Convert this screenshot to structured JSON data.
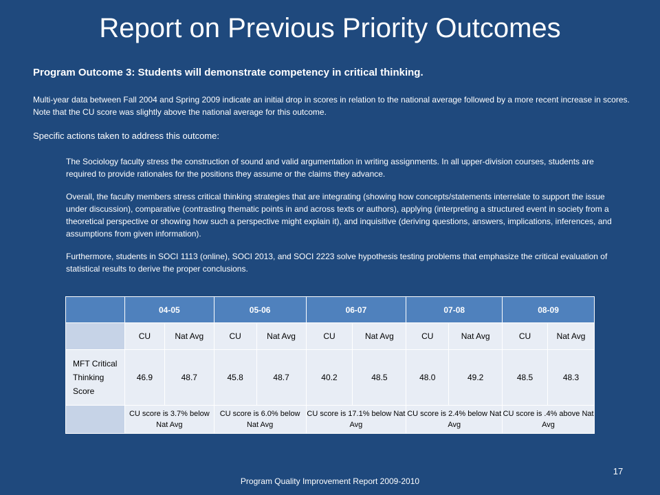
{
  "slide": {
    "title": "Report on Previous Priority Outcomes",
    "outcome": "Program Outcome 3: Students will demonstrate competency in critical thinking.",
    "summary": "Multi-year data between Fall 2004 and Spring 2009 indicate an initial drop in scores in relation to the national average followed by a more recent increase in scores. Note that the CU score was slightly above the national average for this outcome.",
    "actions_heading": "Specific actions taken to address this outcome:",
    "actions": [
      "The Sociology faculty stress the construction of sound and valid argumentation in writing assignments. In all upper-division courses, students are required to provide rationales for the positions they assume or the claims they advance.",
      "Overall, the faculty members stress critical thinking strategies that are integrating (showing how concepts/statements interrelate to support the issue under discussion), comparative (contrasting thematic points in and across texts or authors), applying (interpreting a structured event in society from a theoretical perspective or showing how such a perspective might explain it), and inquisitive (deriving questions, answers, implications, inferences, and assumptions from given information).",
      "Furthermore, students in SOCI 1113 (online), SOCI 2013, and SOCI 2223 solve hypothesis testing problems that emphasize the critical evaluation of statistical results to derive the proper conclusions."
    ],
    "footer": "Program Quality Improvement Report 2009-2010",
    "page_number": "17"
  },
  "table": {
    "years": [
      "04-05",
      "05-06",
      "06-07",
      "07-08",
      "08-09"
    ],
    "sub_headers": [
      "CU",
      "Nat Avg",
      "CU",
      "Nat Avg",
      "CU",
      "Nat Avg",
      "CU",
      "Nat Avg",
      "CU",
      "Nat Avg"
    ],
    "row_label": "MFT Critical Thinking Score",
    "values": [
      "46.9",
      "48.7",
      "45.8",
      "48.7",
      "40.2",
      "48.5",
      "48.0",
      "49.2",
      "48.5",
      "48.3"
    ],
    "notes": [
      "CU score is 3.7% below Nat Avg",
      "CU score is 6.0% below Nat Avg",
      "CU score is 17.1% below Nat Avg",
      "CU score is 2.4% below Nat Avg",
      "CU score is .4% above Nat Avg"
    ]
  },
  "colors": {
    "background": "#1f497d",
    "header": "#4f81bd",
    "cell": "#e8edf5",
    "label_cell": "#c6d3e7"
  }
}
